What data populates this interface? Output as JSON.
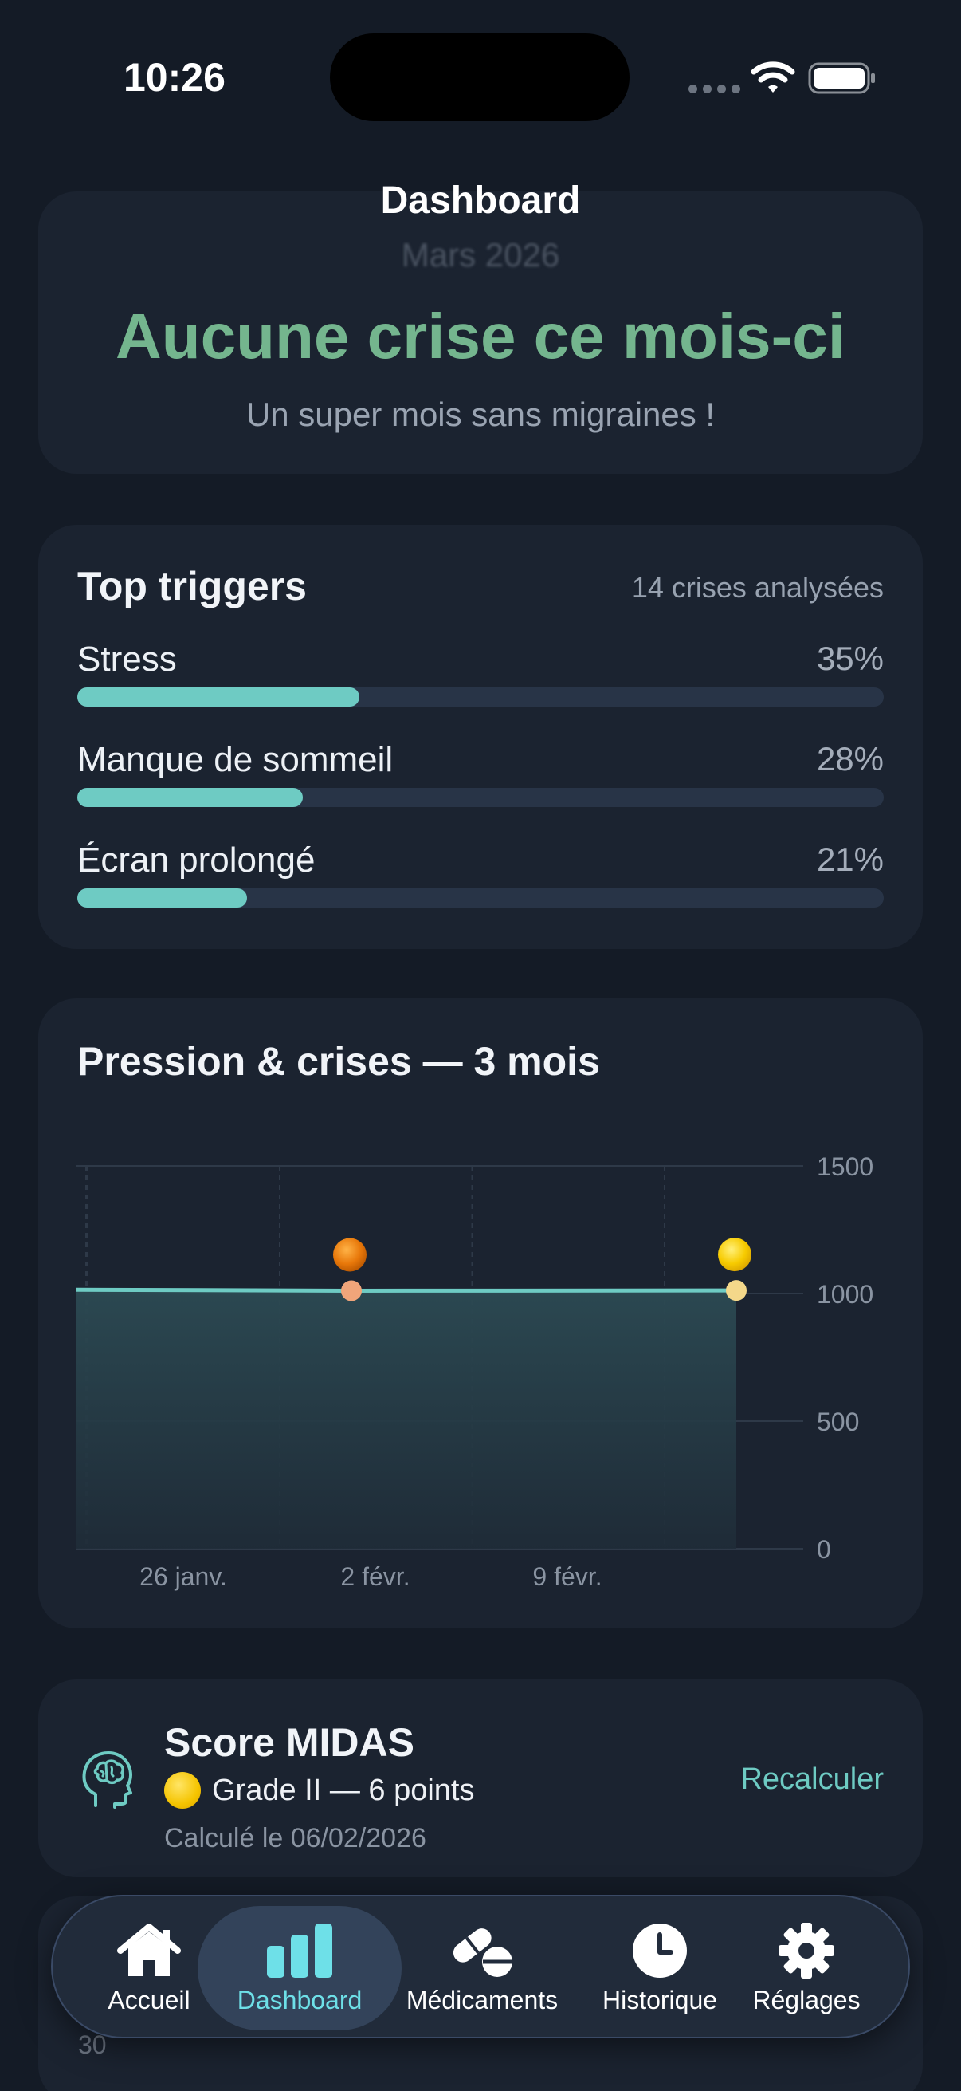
{
  "status_bar": {
    "time": "10:26"
  },
  "nav": {
    "title": "Dashboard"
  },
  "summary": {
    "month": "Mars 2026",
    "headline": "Aucune crise ce mois-ci",
    "subtitle": "Un super mois sans migraines !"
  },
  "triggers": {
    "title": "Top triggers",
    "count": "14 crises analysées",
    "items": [
      {
        "label": "Stress",
        "percent_text": "35%",
        "percent": 35
      },
      {
        "label": "Manque de sommeil",
        "percent_text": "28%",
        "percent": 28
      },
      {
        "label": "Écran prolongé",
        "percent_text": "21%",
        "percent": 21
      }
    ]
  },
  "pressure_chart": {
    "title": "Pression & crises — 3 mois"
  },
  "chart_data": {
    "type": "area",
    "title": "Pression & crises — 3 mois",
    "x_ticks": [
      "26 janv.",
      "2 févr.",
      "9 févr."
    ],
    "y_ticks": [
      0,
      500,
      1000,
      1500
    ],
    "ylim": [
      0,
      1500
    ],
    "grid": true,
    "series": [
      {
        "points": [
          {
            "x": "2026-01-23",
            "y": 1015
          },
          {
            "x": "2026-02-02",
            "y": 1011
          },
          {
            "x": "2026-02-16",
            "y": 1012
          }
        ]
      }
    ],
    "crises": [
      {
        "x": "2026-02-02",
        "y": 1011,
        "marker": "orange"
      },
      {
        "x": "2026-02-16",
        "y": 1012,
        "marker": "yellow"
      }
    ],
    "colors": {
      "line": "#6ecbc3",
      "fill": "#2a4a52",
      "crisis_point": "#f0a57a",
      "crisis_point_late": "#f4d88a"
    }
  },
  "midas": {
    "title": "Score MIDAS",
    "grade": "Grade II — 6 points",
    "date": "Calculé le 06/02/2026",
    "recalc": "Recalculer",
    "icon": "brain-head-icon"
  },
  "background_peek": {
    "number": "30"
  },
  "tabbar": {
    "tabs": [
      {
        "label": "Accueil",
        "icon": "house-icon"
      },
      {
        "label": "Dashboard",
        "icon": "chart-bar-icon",
        "active": true
      },
      {
        "label": "Médicaments",
        "icon": "pills-icon"
      },
      {
        "label": "Historique",
        "icon": "clock-icon"
      },
      {
        "label": "Réglages",
        "icon": "gear-icon"
      }
    ]
  },
  "theme": {
    "accent": "#6ecbc3",
    "success": "#74b58e",
    "tab_active": "#6ee0e8"
  }
}
